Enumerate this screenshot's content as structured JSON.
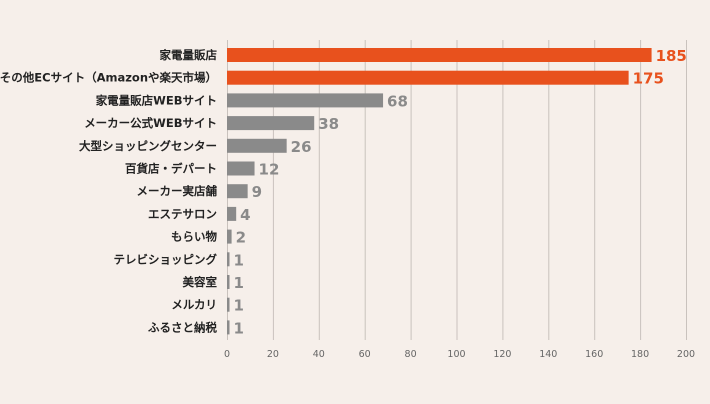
{
  "chart_data": {
    "type": "bar",
    "orientation": "horizontal",
    "categories": [
      "家電量販店",
      "その他ECサイト（Amazonや楽天市場）",
      "家電量販店WEBサイト",
      "メーカー公式WEBサイト",
      "大型ショッピングセンター",
      "百貨店・デパート",
      "メーカー実店舗",
      "エステサロン",
      "もらい物",
      "テレビショッピング",
      "美容室",
      "メルカリ",
      "ふるさと納税"
    ],
    "values": [
      185,
      175,
      68,
      38,
      26,
      12,
      9,
      4,
      2,
      1,
      1,
      1,
      1
    ],
    "highlight_count": 2,
    "xlim": [
      0,
      200
    ],
    "xticks": [
      0,
      20,
      40,
      60,
      80,
      100,
      120,
      140,
      160,
      180,
      200
    ],
    "grid": true,
    "title": "",
    "xlabel": "",
    "ylabel": ""
  },
  "colors": {
    "background": "#f6efea",
    "highlight_bar": "#e8511d",
    "normal_bar": "#8a8a8a",
    "highlight_value": "#e8511d",
    "normal_value": "#8a8a8a",
    "grid": "#c9c2bd"
  }
}
